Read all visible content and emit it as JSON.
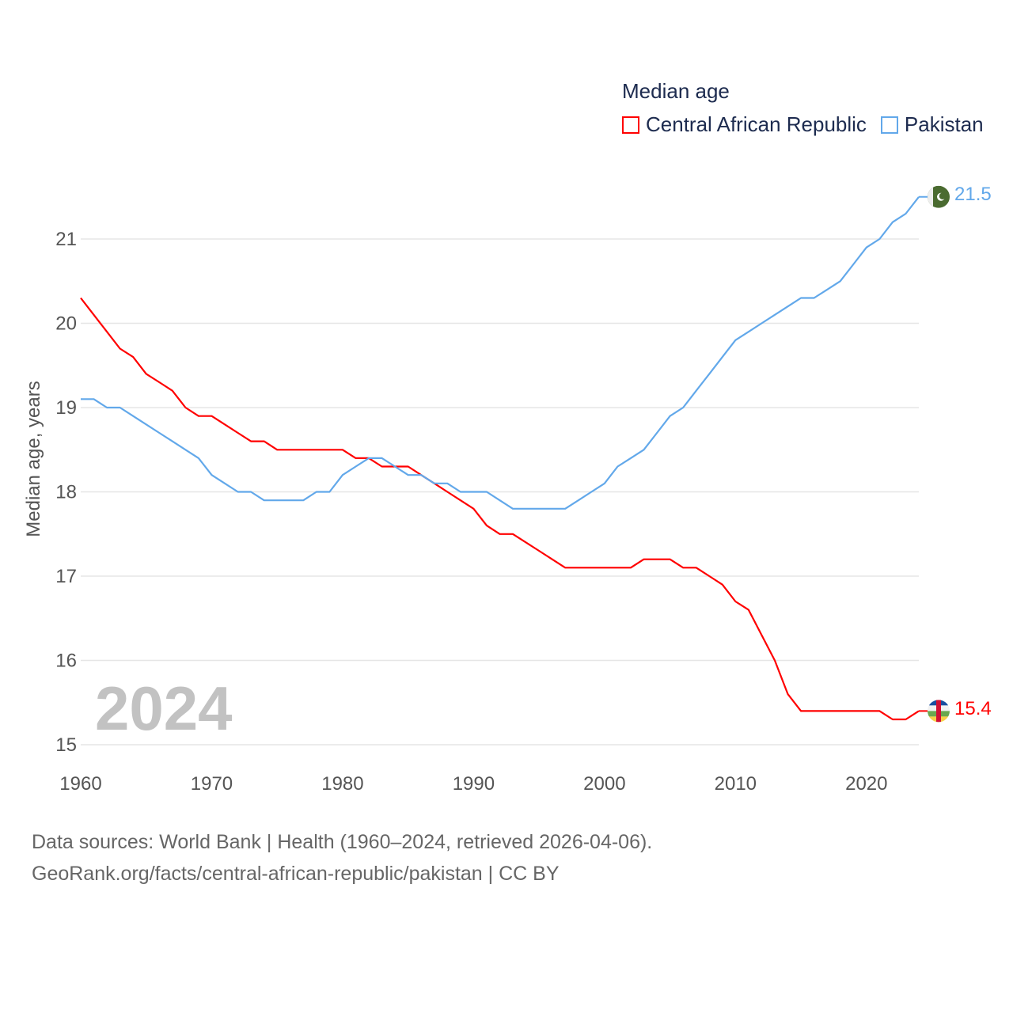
{
  "chart_data": {
    "type": "line",
    "title": "Median age",
    "ylabel": "Median age, years",
    "xlabel": "",
    "xlim": [
      1960,
      2024
    ],
    "ylim": [
      15,
      21.5
    ],
    "x_ticks": [
      "1960",
      "1970",
      "1980",
      "1990",
      "2000",
      "2010",
      "2020"
    ],
    "y_ticks": [
      "15",
      "16",
      "17",
      "18",
      "19",
      "20",
      "21"
    ],
    "grid": true,
    "legend_position": "top-right",
    "current_year": "2024",
    "x": [
      1960,
      1961,
      1962,
      1963,
      1964,
      1965,
      1966,
      1967,
      1968,
      1969,
      1970,
      1971,
      1972,
      1973,
      1974,
      1975,
      1976,
      1977,
      1978,
      1979,
      1980,
      1981,
      1982,
      1983,
      1984,
      1985,
      1986,
      1987,
      1988,
      1989,
      1990,
      1991,
      1992,
      1993,
      1994,
      1995,
      1996,
      1997,
      1998,
      1999,
      2000,
      2001,
      2002,
      2003,
      2004,
      2005,
      2006,
      2007,
      2008,
      2009,
      2010,
      2011,
      2012,
      2013,
      2014,
      2015,
      2016,
      2017,
      2018,
      2019,
      2020,
      2021,
      2022,
      2023,
      2024
    ],
    "series": [
      {
        "name": "Central African Republic",
        "color": "#ff0000",
        "end_label": "15.4",
        "values": [
          20.3,
          20.1,
          19.9,
          19.7,
          19.6,
          19.4,
          19.3,
          19.2,
          19.0,
          18.9,
          18.9,
          18.8,
          18.7,
          18.6,
          18.6,
          18.5,
          18.5,
          18.5,
          18.5,
          18.5,
          18.5,
          18.4,
          18.4,
          18.3,
          18.3,
          18.3,
          18.2,
          18.1,
          18.0,
          17.9,
          17.8,
          17.6,
          17.5,
          17.5,
          17.4,
          17.3,
          17.2,
          17.1,
          17.1,
          17.1,
          17.1,
          17.1,
          17.1,
          17.2,
          17.2,
          17.2,
          17.1,
          17.1,
          17.0,
          16.9,
          16.7,
          16.6,
          16.3,
          16.0,
          15.6,
          15.4,
          15.4,
          15.4,
          15.4,
          15.4,
          15.4,
          15.4,
          15.3,
          15.3,
          15.4
        ]
      },
      {
        "name": "Pakistan",
        "color": "#62a8ea",
        "end_label": "21.5",
        "values": [
          19.1,
          19.1,
          19.0,
          19.0,
          18.9,
          18.8,
          18.7,
          18.6,
          18.5,
          18.4,
          18.2,
          18.1,
          18.0,
          18.0,
          17.9,
          17.9,
          17.9,
          17.9,
          18.0,
          18.0,
          18.2,
          18.3,
          18.4,
          18.4,
          18.3,
          18.2,
          18.2,
          18.1,
          18.1,
          18.0,
          18.0,
          18.0,
          17.9,
          17.8,
          17.8,
          17.8,
          17.8,
          17.8,
          17.9,
          18.0,
          18.1,
          18.3,
          18.4,
          18.5,
          18.7,
          18.9,
          19.0,
          19.2,
          19.4,
          19.6,
          19.8,
          19.9,
          20.0,
          20.1,
          20.2,
          20.3,
          20.3,
          20.4,
          20.5,
          20.7,
          20.9,
          21.0,
          21.2,
          21.3,
          21.5
        ]
      }
    ]
  },
  "footer": {
    "line1": "Data sources: World Bank | Health (1960–2024, retrieved 2026-04-06).",
    "line2": "GeoRank.org/facts/central-african-republic/pakistan | CC BY"
  }
}
